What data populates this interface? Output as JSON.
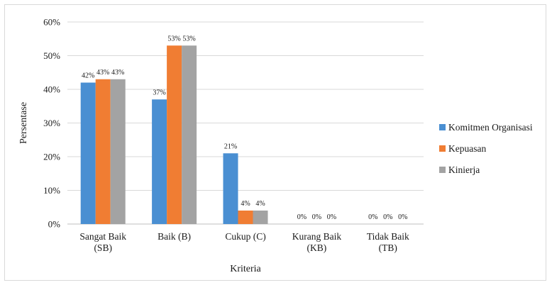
{
  "chart_data": {
    "type": "bar",
    "xlabel": "Kriteria",
    "ylabel": "Persentase",
    "ylim": [
      0,
      60
    ],
    "ytick_step": 10,
    "ytick_labels": [
      "0%",
      "10%",
      "20%",
      "30%",
      "40%",
      "50%",
      "60%"
    ],
    "grid": true,
    "legend_position": "right",
    "categories": [
      [
        "Sangat Baik",
        "(SB)"
      ],
      [
        "Baik (B)"
      ],
      [
        "Cukup (C)"
      ],
      [
        "Kurang Baik",
        "(KB)"
      ],
      [
        "Tidak Baik",
        "(TB)"
      ]
    ],
    "series": [
      {
        "name": "Komitmen Organisasi",
        "color": "#4a8fd2",
        "values": [
          42,
          37,
          21,
          0,
          0
        ],
        "labels": [
          "42%",
          "37%",
          "21%",
          "0%",
          "0%"
        ]
      },
      {
        "name": "Kepuasan",
        "color": "#f07d33",
        "values": [
          43,
          53,
          4,
          0,
          0
        ],
        "labels": [
          "43%",
          "53%",
          "4%",
          "0%",
          "0%"
        ]
      },
      {
        "name": "Kinierja",
        "color": "#a3a3a3",
        "values": [
          43,
          53,
          4,
          0,
          0
        ],
        "labels": [
          "43%",
          "53%",
          "4%",
          "0%",
          "0%"
        ]
      }
    ]
  }
}
